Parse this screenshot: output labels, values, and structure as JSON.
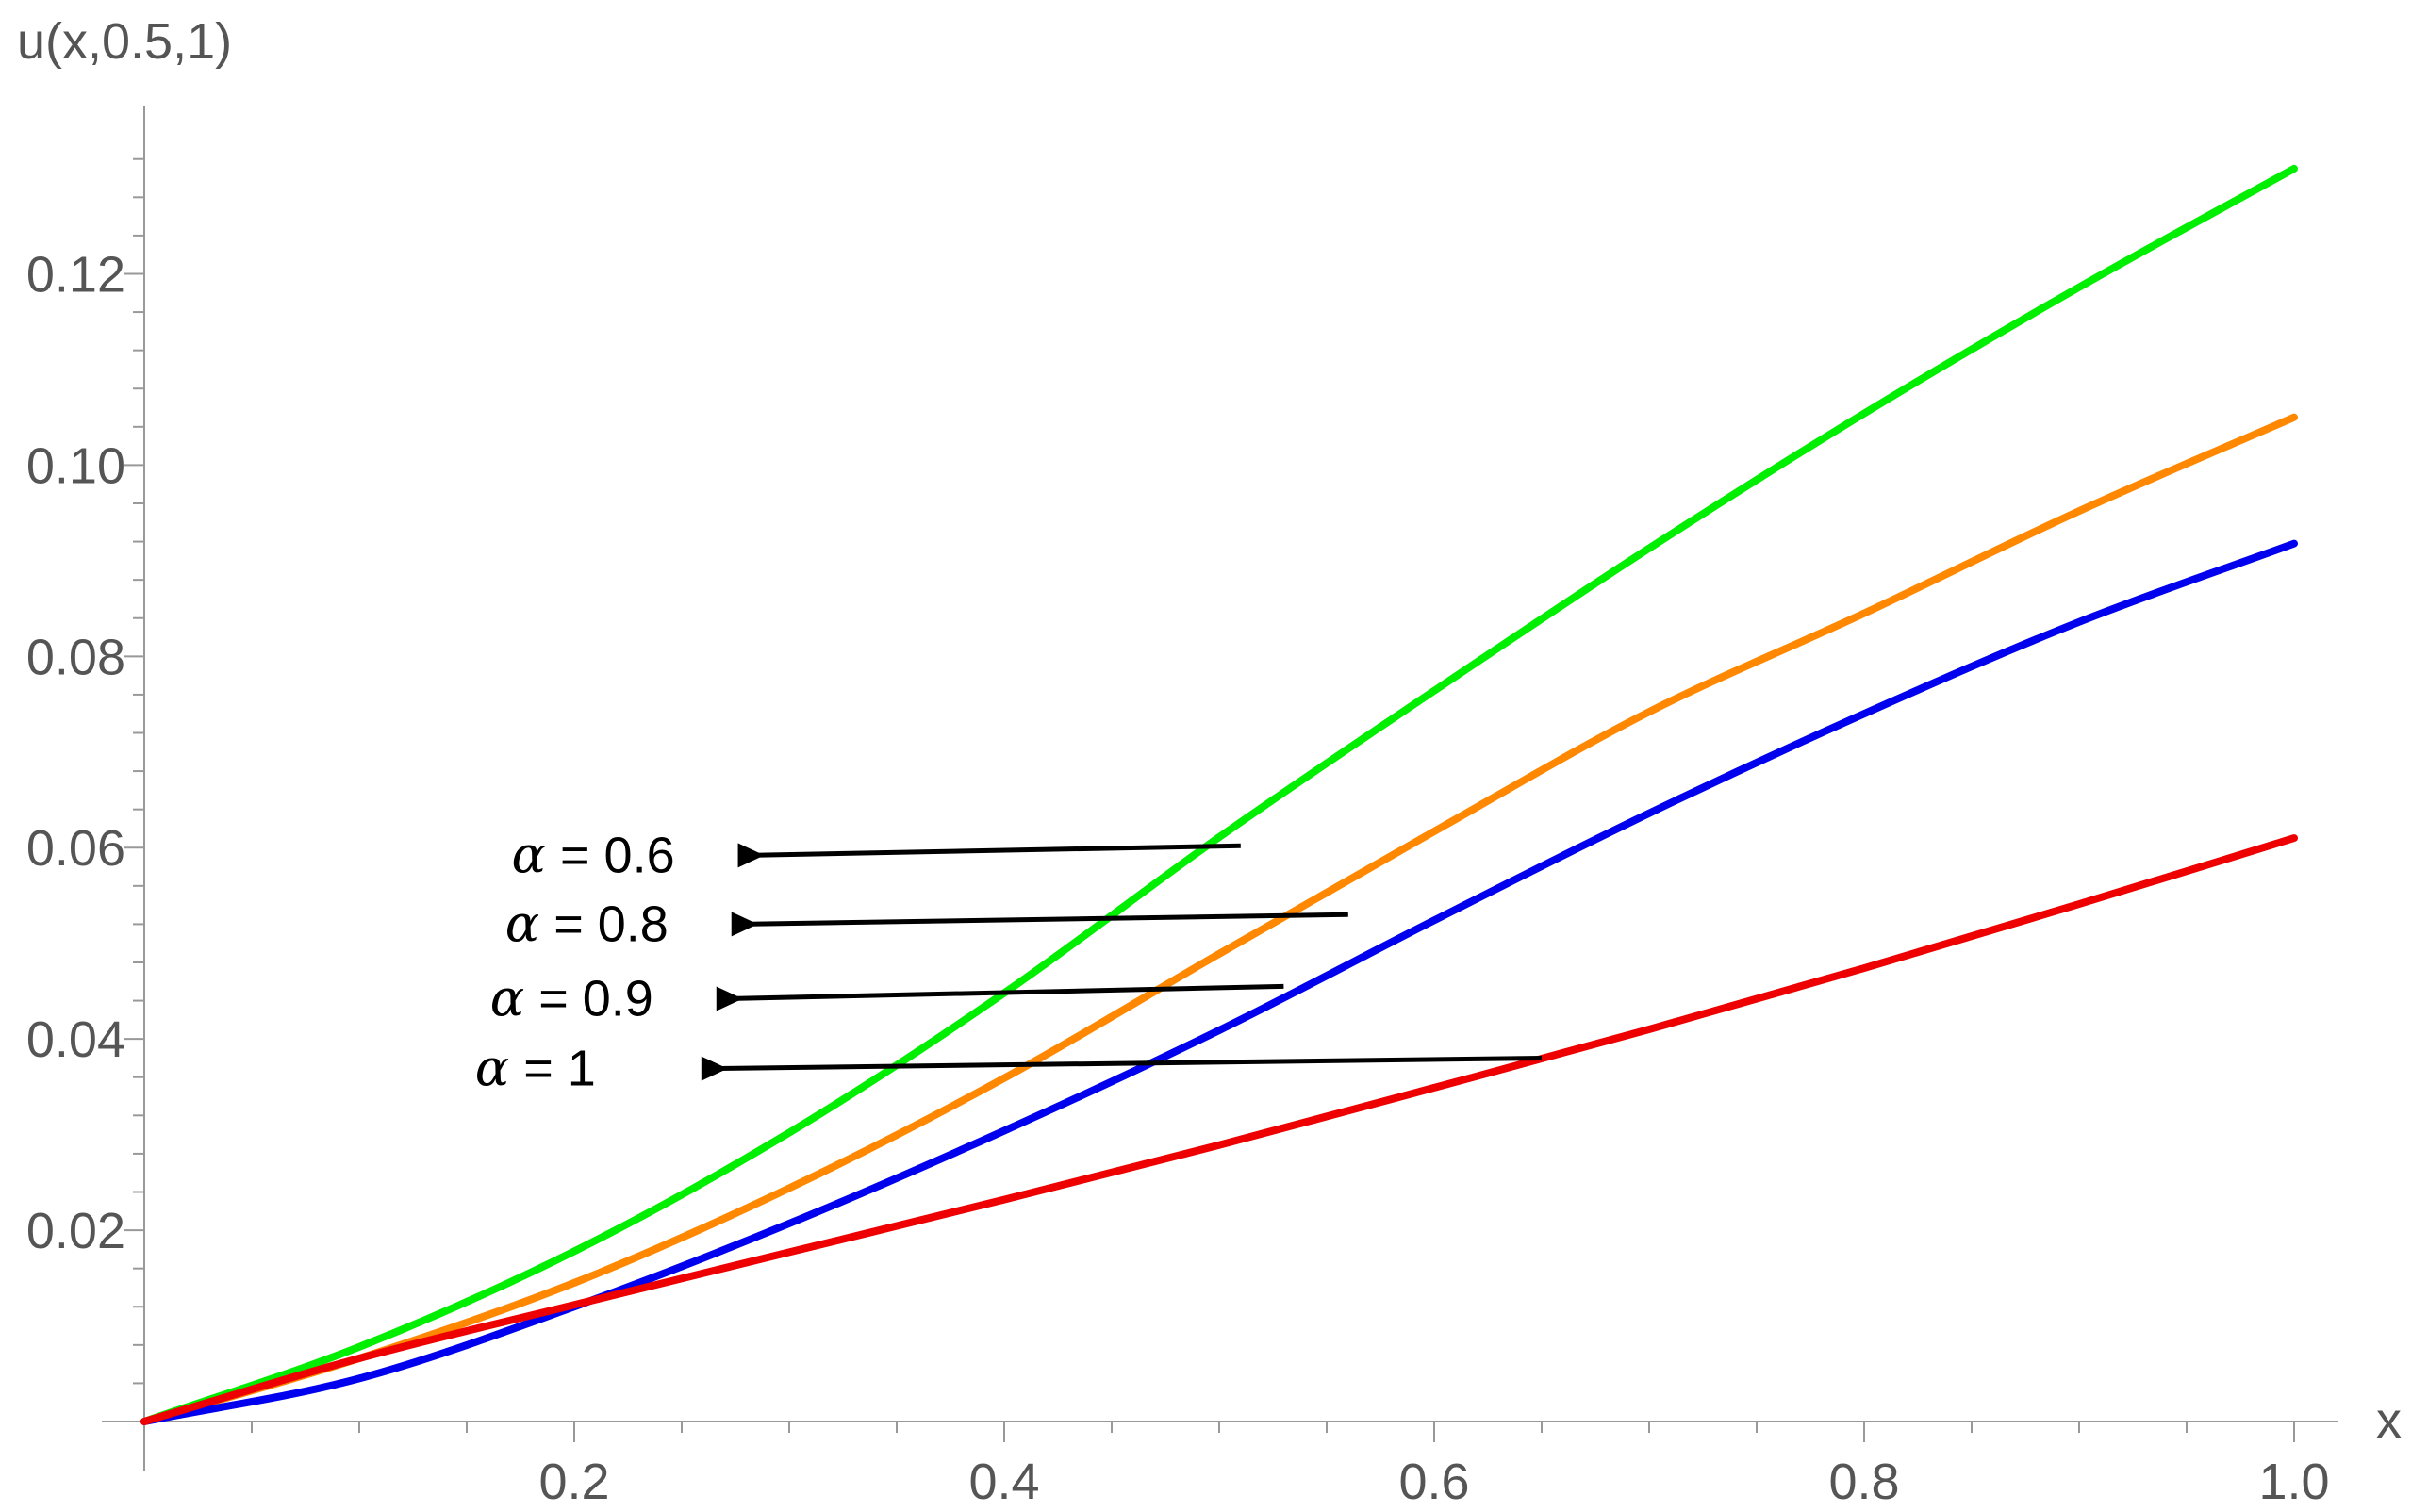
{
  "chart_data": {
    "type": "line",
    "title": "",
    "xlabel": "x",
    "ylabel": "u(x,0.5,1)",
    "xlim": [
      0,
      1.0
    ],
    "ylim": [
      0,
      0.137
    ],
    "x_ticks": [
      0.2,
      0.4,
      0.6,
      0.8,
      1.0
    ],
    "x_tick_labels": [
      "0.2",
      "0.4",
      "0.6",
      "0.8",
      "1.0"
    ],
    "y_ticks": [
      0.02,
      0.04,
      0.06,
      0.08,
      0.1,
      0.12
    ],
    "y_tick_labels": [
      "0.02",
      "0.04",
      "0.06",
      "0.08",
      "0.10",
      "0.12"
    ],
    "grid": false,
    "legend": "none",
    "x": [
      0.0,
      0.1,
      0.2,
      0.3,
      0.4,
      0.5,
      0.6,
      0.7,
      0.8,
      0.9,
      1.0
    ],
    "series": [
      {
        "color": "#00ee00",
        "values": [
          0.0,
          0.0078,
          0.0178,
          0.0302,
          0.0448,
          0.0611,
          0.0764,
          0.0913,
          0.1054,
          0.1186,
          0.131
        ]
      },
      {
        "color": "#ff8800",
        "values": [
          0.0,
          0.0066,
          0.0145,
          0.0244,
          0.0359,
          0.0489,
          0.0617,
          0.0742,
          0.0845,
          0.0952,
          0.105
        ]
      },
      {
        "color": "#0000ee",
        "values": [
          0.0,
          0.0045,
          0.012,
          0.0207,
          0.0304,
          0.0409,
          0.0524,
          0.0636,
          0.074,
          0.0836,
          0.0918
        ]
      },
      {
        "color": "#ee0000",
        "values": [
          0.0,
          0.0066,
          0.0122,
          0.0177,
          0.0232,
          0.0289,
          0.0349,
          0.041,
          0.0474,
          0.0541,
          0.061
        ]
      }
    ],
    "annotations": [
      {
        "greek": "α",
        "text": " = 0.6",
        "arrow_from": [
          0.277,
          0.0592
        ],
        "arrow_to": [
          0.51,
          0.0602
        ]
      },
      {
        "greek": "α",
        "text": " = 0.8",
        "arrow_from": [
          0.274,
          0.052
        ],
        "arrow_to": [
          0.56,
          0.053
        ]
      },
      {
        "greek": "α",
        "text": " = 0.9",
        "arrow_from": [
          0.267,
          0.0442
        ],
        "arrow_to": [
          0.53,
          0.0455
        ]
      },
      {
        "greek": "α",
        "text": " = 1",
        "arrow_from": [
          0.26,
          0.0369
        ],
        "arrow_to": [
          0.65,
          0.038
        ]
      }
    ]
  }
}
